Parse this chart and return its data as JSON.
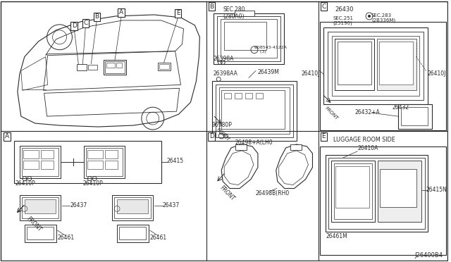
{
  "bg_color": "#ffffff",
  "lc": "#2a2a2a",
  "labels": {
    "A": "A",
    "B": "B",
    "C": "C",
    "D": "D",
    "E": "E",
    "26415": "26415",
    "26410P": "26410P",
    "26437": "26437",
    "26461": "26461",
    "26398A": "26398A",
    "26398AA": "26398AA",
    "26439M": "26439M",
    "96980P": "96980P",
    "sec280": "SEC.280\n(280A0)",
    "08543": "Ø08543-4122A\n    (3)",
    "26430": "26430",
    "sec251": "SEC.251\n(25190)",
    "sec283": "SEC.283\n(2B336M)",
    "26410J": "26410J",
    "26432A": "26432+A",
    "26432": "26432",
    "26498LH": "26498+A(LH0",
    "26498RH": "26498B(RH0",
    "luggage": "LUGGAGE ROOM SIDE",
    "26410A": "26410A",
    "26415N": "26415N",
    "26461M": "26461M",
    "FRONT": "FRONT",
    "J26400B4": "J26400B4"
  }
}
